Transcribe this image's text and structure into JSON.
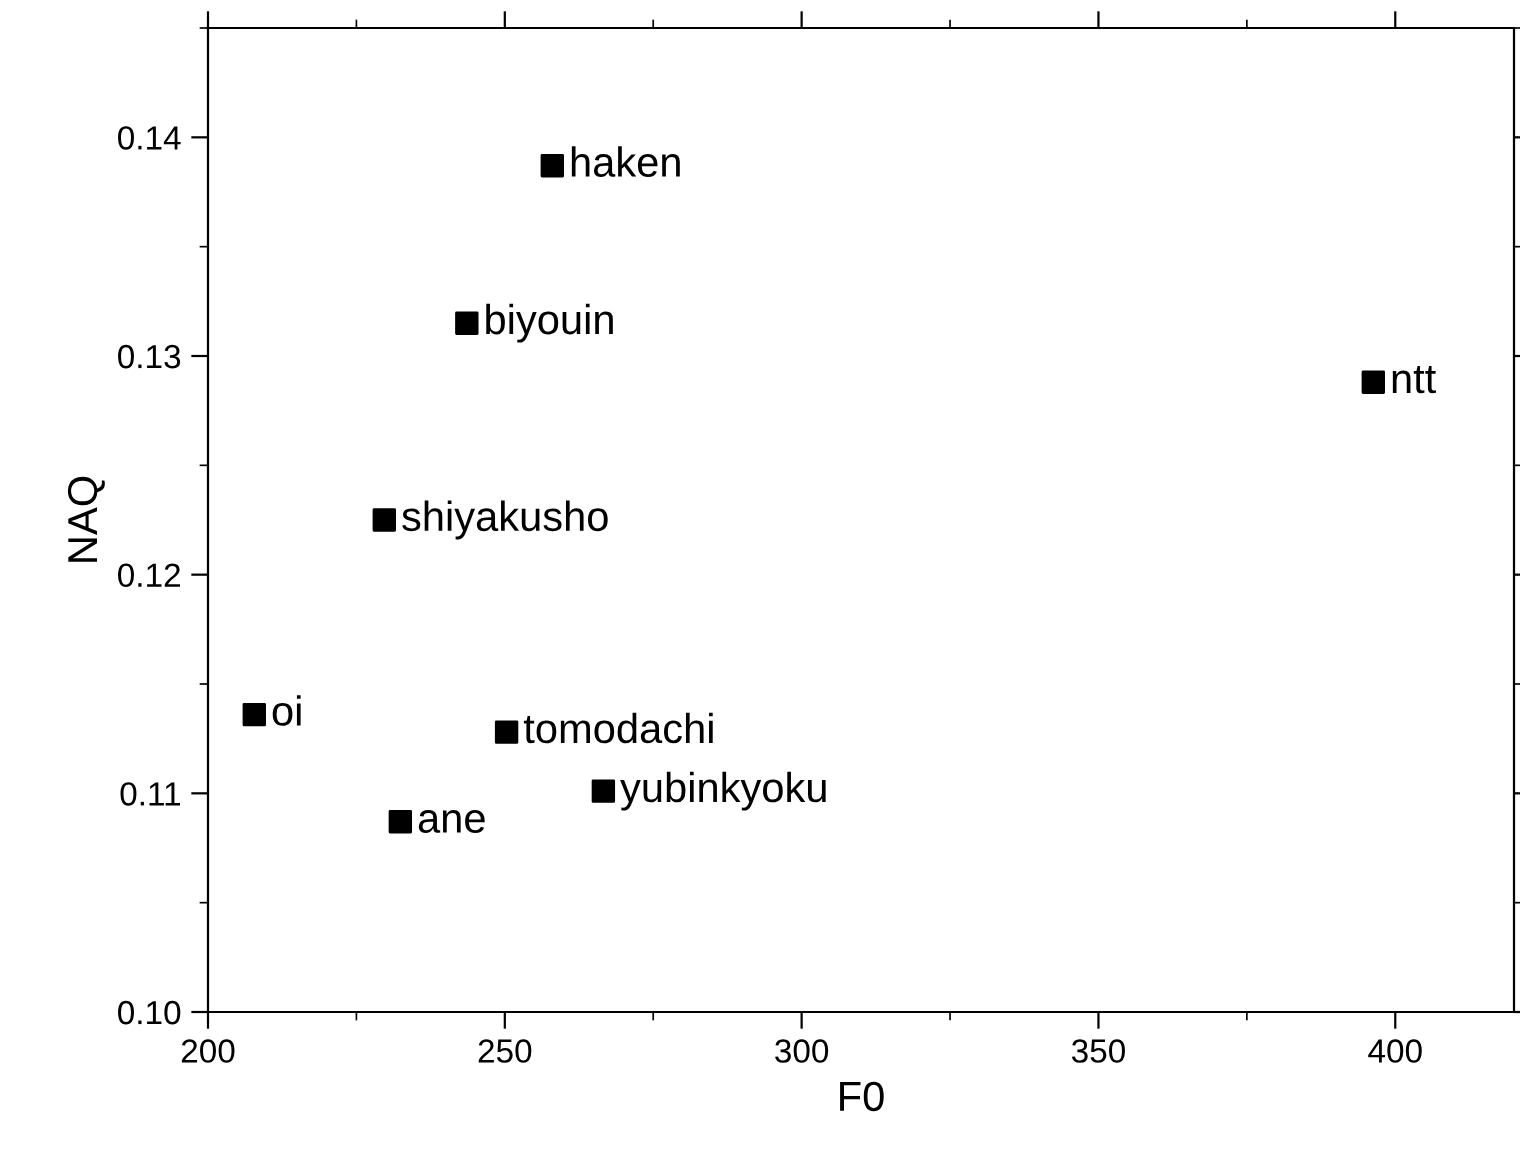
{
  "chart_data": {
    "type": "scatter",
    "xlabel": "F0",
    "ylabel": "NAQ",
    "xlim": [
      200,
      420
    ],
    "xticks": [
      200,
      250,
      300,
      350,
      400
    ],
    "ylim": [
      0.1,
      0.145
    ],
    "yticks": [
      {
        "value": 0.1,
        "label": "0.10"
      },
      {
        "value": 0.11,
        "label": "0.11"
      },
      {
        "value": 0.12,
        "label": "0.12"
      },
      {
        "value": 0.13,
        "label": "0.13"
      },
      {
        "value": 0.14,
        "label": "0.14"
      }
    ],
    "x": [
      258,
      243.6,
      396.3,
      229.7,
      207.8,
      250.3,
      266.6,
      232.4
    ],
    "series": [
      {
        "color": "#000000",
        "values": [
          0.1387,
          0.1315,
          0.1288,
          0.1225,
          0.1136,
          0.1128,
          0.1101,
          0.1087
        ]
      }
    ],
    "annotations": [
      {
        "text": "haken",
        "x": 258,
        "y": 0.1387
      },
      {
        "text": "biyouin",
        "x": 243.6,
        "y": 0.1315
      },
      {
        "text": "ntt",
        "x": 396.3,
        "y": 0.1288
      },
      {
        "text": "shiyakusho",
        "x": 229.7,
        "y": 0.1225
      },
      {
        "text": "oi",
        "x": 207.8,
        "y": 0.1136
      },
      {
        "text": "tomodachi",
        "x": 250.3,
        "y": 0.1128
      },
      {
        "text": "yubinkyoku",
        "x": 266.6,
        "y": 0.1101
      },
      {
        "text": "ane",
        "x": 232.4,
        "y": 0.1087
      }
    ],
    "marker": "square",
    "grid": false,
    "legend": false
  }
}
